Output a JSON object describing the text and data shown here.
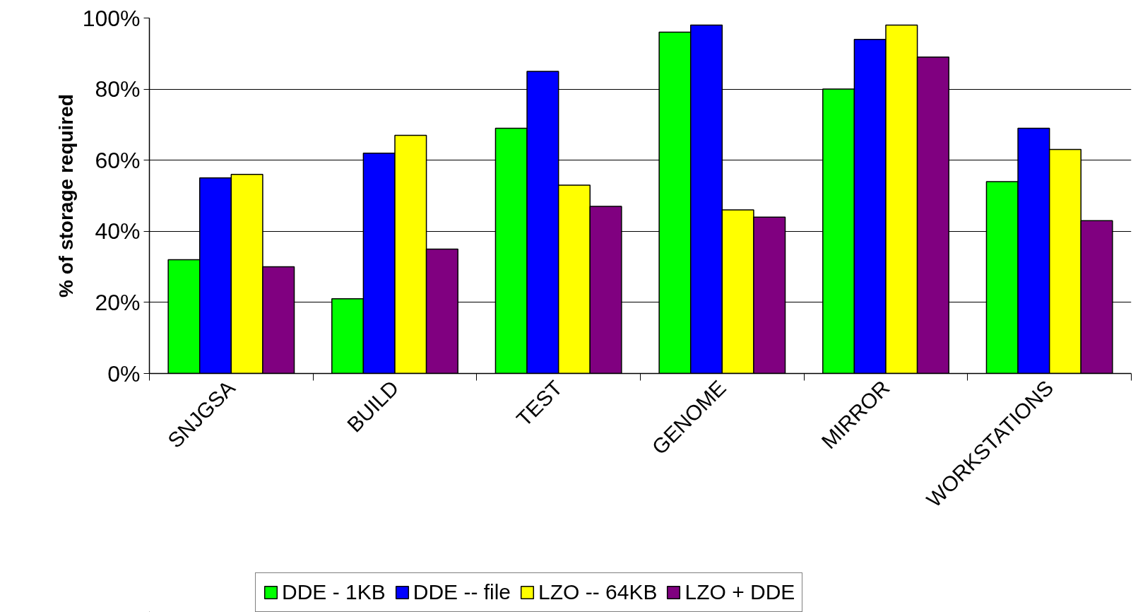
{
  "chart_data": {
    "type": "bar",
    "ylabel": "% of storage required",
    "categories": [
      "SNJGSA",
      "BUILD",
      "TEST",
      "GENOME",
      "MIRROR",
      "WORKSTATIONS"
    ],
    "series": [
      {
        "name": "DDE - 1KB",
        "color": "#00ff00",
        "values": [
          32,
          21,
          69,
          96,
          80,
          54
        ]
      },
      {
        "name": "DDE -- file",
        "color": "#0000ff",
        "values": [
          55,
          62,
          85,
          98,
          94,
          69
        ]
      },
      {
        "name": "LZO -- 64KB",
        "color": "#ffff00",
        "values": [
          56,
          67,
          53,
          46,
          98,
          63
        ]
      },
      {
        "name": "LZO + DDE",
        "color": "#800080",
        "values": [
          30,
          35,
          47,
          44,
          89,
          43
        ]
      }
    ],
    "ylim": [
      0,
      100
    ],
    "yticks": [
      {
        "value": 0,
        "label": "0%"
      },
      {
        "value": 20,
        "label": "20%"
      },
      {
        "value": 40,
        "label": "40%"
      },
      {
        "value": 60,
        "label": "60%"
      },
      {
        "value": 80,
        "label": "80%"
      },
      {
        "value": 100,
        "label": "100%"
      }
    ],
    "grid": "y",
    "legend": "bottom"
  }
}
